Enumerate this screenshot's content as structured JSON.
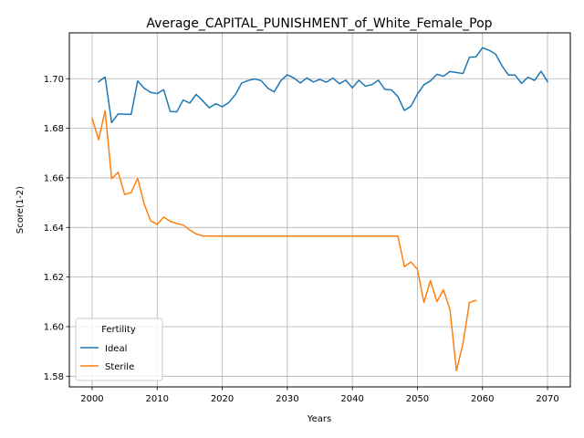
{
  "chart_data": {
    "type": "line",
    "title": "Average_CAPITAL_PUNISHMENT_of_White_Female_Pop",
    "xlabel": "Years",
    "ylabel": "Score(1-2)",
    "xlim": [
      1996.5,
      2073.5
    ],
    "ylim": [
      1.5757,
      1.7185
    ],
    "xticks": [
      2000,
      2010,
      2020,
      2030,
      2040,
      2050,
      2060,
      2070
    ],
    "xtick_labels": [
      "2000",
      "2010",
      "2020",
      "2030",
      "2040",
      "2050",
      "2060",
      "2070"
    ],
    "yticks": [
      1.58,
      1.6,
      1.62,
      1.64,
      1.66,
      1.68,
      1.7
    ],
    "ytick_labels": [
      "1.58",
      "1.60",
      "1.62",
      "1.64",
      "1.66",
      "1.68",
      "1.70"
    ],
    "grid": true,
    "legend": {
      "title": "Fertility",
      "placement": "lower-left"
    },
    "series": [
      {
        "name": "Ideal",
        "color": "#1f77b4",
        "x": [
          2001,
          2002,
          2003,
          2004,
          2005,
          2006,
          2007,
          2008,
          2009,
          2010,
          2011,
          2012,
          2013,
          2014,
          2015,
          2016,
          2017,
          2018,
          2019,
          2020,
          2021,
          2022,
          2023,
          2024,
          2025,
          2026,
          2027,
          2028,
          2029,
          2030,
          2031,
          2032,
          2033,
          2034,
          2035,
          2036,
          2037,
          2038,
          2039,
          2040,
          2041,
          2042,
          2043,
          2044,
          2045,
          2046,
          2047,
          2048,
          2049,
          2050,
          2051,
          2052,
          2053,
          2054,
          2055,
          2056,
          2057,
          2058,
          2059,
          2060,
          2061,
          2062,
          2063,
          2064,
          2065,
          2066,
          2067,
          2068,
          2069,
          2070
        ],
        "y": [
          1.6988,
          1.7007,
          1.6823,
          1.6858,
          1.6857,
          1.6856,
          1.6991,
          1.6962,
          1.6945,
          1.694,
          1.6956,
          1.6868,
          1.6866,
          1.6914,
          1.6902,
          1.6937,
          1.6911,
          1.6883,
          1.6899,
          1.6887,
          1.6904,
          1.6935,
          1.6983,
          1.6993,
          1.6999,
          1.6992,
          1.6962,
          1.6947,
          1.6992,
          1.7016,
          1.7003,
          1.6983,
          1.7003,
          1.6987,
          1.6997,
          1.6986,
          1.7003,
          1.698,
          1.6994,
          1.6963,
          1.6994,
          1.697,
          1.6976,
          1.6994,
          1.6957,
          1.6955,
          1.6928,
          1.6872,
          1.6889,
          1.6938,
          1.6976,
          1.6991,
          1.7018,
          1.701,
          1.7029,
          1.7025,
          1.7021,
          1.7087,
          1.7088,
          1.7125,
          1.7115,
          1.71,
          1.7052,
          1.7015,
          1.7015,
          1.6981,
          1.7006,
          1.6993,
          1.703,
          1.6988
        ]
      },
      {
        "name": "Sterile",
        "color": "#ff7f0e",
        "x": [
          2000,
          2001,
          2002,
          2003,
          2004,
          2005,
          2006,
          2007,
          2008,
          2009,
          2010,
          2011,
          2012,
          2013,
          2014,
          2015,
          2016,
          2017,
          2018,
          2019,
          2020,
          2021,
          2022,
          2023,
          2024,
          2025,
          2026,
          2027,
          2028,
          2029,
          2030,
          2031,
          2032,
          2033,
          2034,
          2035,
          2036,
          2037,
          2038,
          2039,
          2040,
          2041,
          2042,
          2043,
          2044,
          2045,
          2046,
          2047,
          2048,
          2049,
          2050,
          2051,
          2052,
          2053,
          2054,
          2055,
          2056,
          2057,
          2058,
          2059
        ],
        "y": [
          1.684,
          1.6754,
          1.6871,
          1.6597,
          1.6623,
          1.6533,
          1.6541,
          1.6598,
          1.6495,
          1.6427,
          1.6412,
          1.6442,
          1.6425,
          1.6416,
          1.641,
          1.639,
          1.6374,
          1.6366,
          1.6365,
          1.6365,
          1.6365,
          1.6365,
          1.6365,
          1.6365,
          1.6365,
          1.6365,
          1.6365,
          1.6365,
          1.6365,
          1.6365,
          1.6365,
          1.6365,
          1.6365,
          1.6365,
          1.6365,
          1.6365,
          1.6365,
          1.6365,
          1.6365,
          1.6365,
          1.6365,
          1.6365,
          1.6365,
          1.6365,
          1.6365,
          1.6365,
          1.6365,
          1.6365,
          1.6242,
          1.6261,
          1.6231,
          1.6098,
          1.6186,
          1.6101,
          1.6149,
          1.6069,
          1.5822,
          1.5932,
          1.6098,
          1.6106
        ]
      }
    ]
  }
}
